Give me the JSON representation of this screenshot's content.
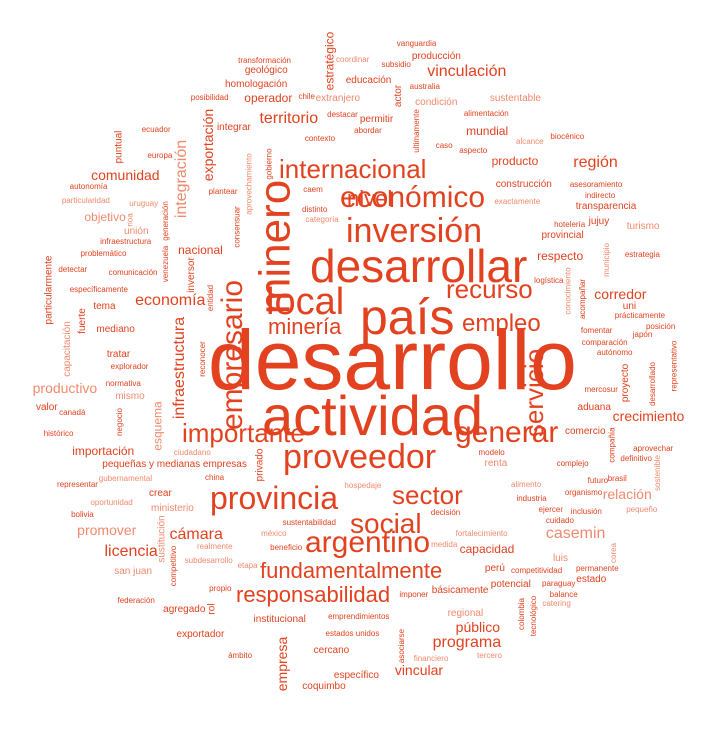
{
  "colors": {
    "primary": "#e2421f",
    "secondary": "#ef8a6e",
    "background": "#ffffff"
  },
  "words": [
    "desarrollo",
    "actividad",
    "país",
    "desarrollar",
    "minero",
    "local",
    "inversión",
    "económico",
    "proveedor",
    "provincia",
    "empresario",
    "internacional",
    "sector",
    "social",
    "argentino",
    "generar",
    "empleo",
    "recurso",
    "minería",
    "servicio",
    "importante",
    "nivel",
    "fundamentalmente",
    "responsabilidad",
    "región",
    "cámara",
    "infraestructura",
    "casemin",
    "programa",
    "economía",
    "territorio",
    "integración",
    "licencia",
    "vinculación",
    "vincular",
    "promover",
    "exportación",
    "comunidad",
    "público",
    "productivo",
    "corredor",
    "empresa",
    "crecimiento",
    "relación",
    "producto",
    "importación",
    "estratégico",
    "objetivo",
    "respecto",
    "nacional",
    "operador",
    "esquema",
    "mundial",
    "capacidad",
    "coquimbo",
    "regional",
    "proyecto",
    "crear",
    "básicamente",
    "sustentable",
    "exportador",
    "particularmente",
    "construcción",
    "extranjero",
    "provincial",
    "tratar",
    "actor",
    "mismo",
    "geológico",
    "permitir",
    "tema",
    "sustitución",
    "transparencia",
    "estado",
    "producción",
    "condición",
    "inversor",
    "específico",
    "valor",
    "renta",
    "cercano",
    "privado",
    "potencial",
    "ministerio",
    "uni",
    "jujuy",
    "rol",
    "luis",
    "mediano",
    "homologación",
    "institucional",
    "capacitación",
    "pequeñas y medianas empresas",
    "comercio",
    "aduana",
    "unión",
    "fuerte",
    "agregado",
    "integrar",
    "turismo",
    "educación",
    "puntual",
    "perú",
    "san juan",
    "caem",
    "beneficio",
    "compañía",
    "particularidad",
    "competitividad",
    "caso",
    "modelo",
    "noa",
    "chile",
    "bolivia",
    "japón",
    "pequeño",
    "desarrollado",
    "definitivo",
    "histórico",
    "gubernamental",
    "fomentar",
    "gobierno",
    "indirecto",
    "medida",
    "aspecto",
    "inclusión",
    "acompañar",
    "catering",
    "industria",
    "posibilidad",
    "posición",
    "sostenible",
    "biocénico",
    "normativa",
    "federación",
    "alcance",
    "asociarse",
    "abordar",
    "representar",
    "realmente",
    "específicamente",
    "tecnológico",
    "logística",
    "oportunidad",
    "comparación",
    "problemático",
    "generación",
    "exactamente",
    "prácticamente",
    "imponer",
    "emprendimientos",
    "municipio",
    "sustentabilidad",
    "infraestructura",
    "ámbito",
    "financiero",
    "competitivo",
    "permanente",
    "cuidado",
    "ciudadano",
    "estrategia",
    "negocio",
    "complejo",
    "etapa",
    "ejercer",
    "organismo",
    "ultimamente",
    "tercero",
    "detectar",
    "futuro",
    "explorador",
    "aprovechamiento",
    "transformación",
    "destacar",
    "subsidio",
    "alimento",
    "entidad",
    "propio",
    "asesoramiento",
    "fortalecimiento",
    "vanguardia",
    "representativo",
    "autónomo",
    "subdesarrollo",
    "alimentación",
    "distinto",
    "consensuar",
    "coordinar",
    "plantear",
    "mercosur",
    "contexto",
    "conocimiento",
    "decisión",
    "comunicación",
    "autonomía",
    "categoría",
    "reconocer",
    "aprovechar",
    "hotelería",
    "hospedaje",
    "balance",
    "venezuela",
    "ecuador",
    "uruguay",
    "paraguay",
    "brasil",
    "colombia",
    "méxico",
    "canadá",
    "australia",
    "china",
    "corea",
    "europa",
    "estados unidos"
  ]
}
